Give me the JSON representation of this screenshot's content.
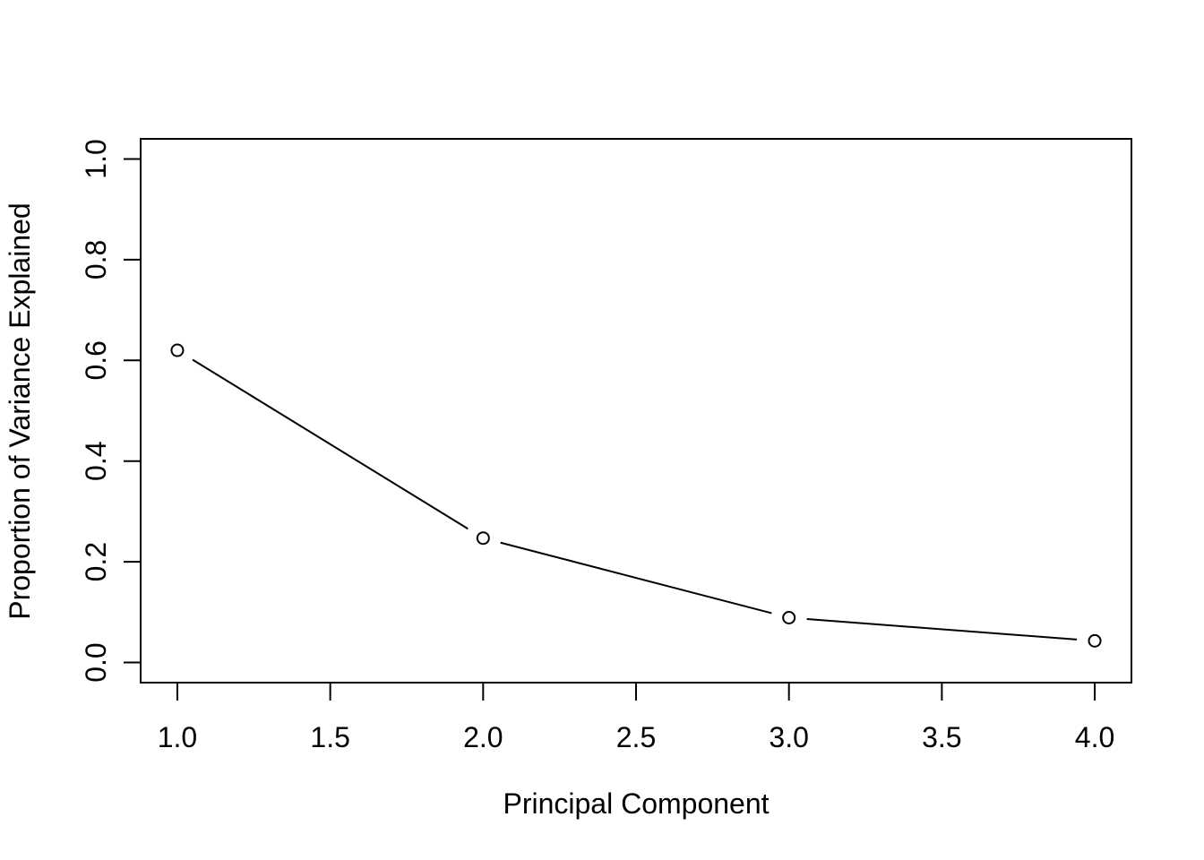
{
  "page": {
    "background_color": "#ffffff"
  },
  "chart_data": {
    "type": "line",
    "style": "R base graphics scree plot, type='b' (open-circle points joined by gapped line segments)",
    "title": "",
    "xlabel": "Principal Component",
    "ylabel": "Proportion of Variance Explained",
    "x": [
      1,
      2,
      3,
      4
    ],
    "y": [
      0.62,
      0.247,
      0.089,
      0.043
    ],
    "xlim": [
      0.88,
      4.12
    ],
    "ylim": [
      -0.04,
      1.04
    ],
    "x_ticks": {
      "values": [
        1.0,
        1.5,
        2.0,
        2.5,
        3.0,
        3.5,
        4.0
      ],
      "labels": [
        "1.0",
        "1.5",
        "2.0",
        "2.5",
        "3.0",
        "3.5",
        "4.0"
      ]
    },
    "y_ticks": {
      "values": [
        0.0,
        0.2,
        0.4,
        0.6,
        0.8,
        1.0
      ],
      "labels": [
        "0.0",
        "0.2",
        "0.4",
        "0.6",
        "0.8",
        "1.0"
      ]
    },
    "grid": false,
    "legend_position": "none",
    "marker": "open-circle",
    "colors": {
      "line": "#000000",
      "marker_stroke": "#000000",
      "marker_fill": "#ffffff",
      "axis": "#000000",
      "text": "#000000",
      "background": "#ffffff"
    }
  }
}
